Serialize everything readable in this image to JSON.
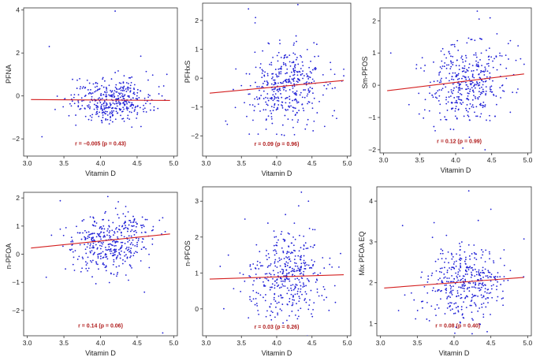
{
  "colors": {
    "points": "#1f1fd6",
    "fit_line": "#d42020",
    "annotation": "#b01c1c",
    "frame": "#333333"
  },
  "chart_data": [
    {
      "type": "scatter",
      "xlabel": "Vitamin D",
      "ylabel": "PFNA",
      "xlim": [
        2.95,
        5.05
      ],
      "ylim": [
        -2.8,
        4.1
      ],
      "xticks": [
        "3.0",
        "3.5",
        "4.0",
        "4.5",
        "5.0"
      ],
      "xtick_values": [
        3.0,
        3.5,
        4.0,
        4.5,
        5.0
      ],
      "yticks": [
        "−2",
        "0",
        "2",
        "4"
      ],
      "ytick_values": [
        -2,
        0,
        2,
        4
      ],
      "fit_line": {
        "x": [
          3.05,
          4.95
        ],
        "y": [
          -0.17,
          -0.21
        ]
      },
      "annotation": "r = −0.005 (p = 0.43)",
      "annotation_pos": [
        4.0,
        -2.3
      ],
      "points_summary": {
        "count": 400,
        "x_mean": 4.15,
        "x_sd": 0.28,
        "y_mean": -0.2,
        "y_sd": 0.5,
        "r": -0.005,
        "outliers": [
          [
            4.2,
            3.95
          ],
          [
            3.3,
            2.3
          ],
          [
            4.55,
            1.85
          ],
          [
            3.2,
            -1.9
          ]
        ]
      }
    },
    {
      "type": "scatter",
      "xlabel": "Vitamin D",
      "ylabel": "PFHxS",
      "xlim": [
        2.95,
        5.05
      ],
      "ylim": [
        -2.7,
        2.6
      ],
      "xticks": [
        "3.0",
        "3.5",
        "4.0",
        "4.5",
        "5.0"
      ],
      "xtick_values": [
        3.0,
        3.5,
        4.0,
        4.5,
        5.0
      ],
      "yticks": [
        "−2",
        "−1",
        "0",
        "1",
        "2"
      ],
      "ytick_values": [
        -2,
        -1,
        0,
        1,
        2
      ],
      "fit_line": {
        "x": [
          3.05,
          4.95
        ],
        "y": [
          -0.52,
          -0.08
        ]
      },
      "annotation": "r = 0.09 (p = 0.96)",
      "annotation_pos": [
        4.0,
        -2.35
      ],
      "points_summary": {
        "count": 400,
        "x_mean": 4.15,
        "x_sd": 0.28,
        "y_mean": -0.3,
        "y_sd": 0.7,
        "r": 0.09,
        "outliers": [
          [
            3.6,
            2.4
          ],
          [
            3.7,
            2.1
          ],
          [
            4.3,
            2.55
          ],
          [
            3.3,
            -1.6
          ]
        ]
      }
    },
    {
      "type": "scatter",
      "xlabel": "Vitamin D",
      "ylabel": "Sm-PFOS",
      "xlim": [
        2.95,
        5.05
      ],
      "ylim": [
        -2.1,
        2.4
      ],
      "xticks": [
        "3.0",
        "3.5",
        "4.0",
        "4.5",
        "5.0"
      ],
      "xtick_values": [
        3.0,
        3.5,
        4.0,
        4.5,
        5.0
      ],
      "yticks": [
        "−2",
        "−1",
        "0",
        "1",
        "2"
      ],
      "ytick_values": [
        -2,
        -1,
        0,
        1,
        2
      ],
      "fit_line": {
        "x": [
          3.05,
          4.95
        ],
        "y": [
          -0.17,
          0.35
        ]
      },
      "annotation": "r = 0.12 (p = 0.99)",
      "annotation_pos": [
        4.05,
        -1.8
      ],
      "points_summary": {
        "count": 400,
        "x_mean": 4.15,
        "x_sd": 0.28,
        "y_mean": 0.1,
        "y_sd": 0.65,
        "r": 0.12,
        "outliers": [
          [
            4.3,
            2.3
          ],
          [
            4.1,
            -1.95
          ],
          [
            3.1,
            1.0
          ],
          [
            4.95,
            0.65
          ]
        ]
      }
    },
    {
      "type": "scatter",
      "xlabel": "Vitamin D",
      "ylabel": "n-PFOA",
      "xlim": [
        2.95,
        5.05
      ],
      "ylim": [
        -2.9,
        2.2
      ],
      "xticks": [
        "3.0",
        "3.5",
        "4.0",
        "4.5",
        "5.0"
      ],
      "xtick_values": [
        3.0,
        3.5,
        4.0,
        4.5,
        5.0
      ],
      "yticks": [
        "−2",
        "−1",
        "0",
        "1",
        "2"
      ],
      "ytick_values": [
        -2,
        -1,
        0,
        1,
        2
      ],
      "fit_line": {
        "x": [
          3.05,
          4.95
        ],
        "y": [
          0.22,
          0.72
        ]
      },
      "annotation": "r = 0.14 (p = 0.06)",
      "annotation_pos": [
        4.0,
        -2.6
      ],
      "points_summary": {
        "count": 400,
        "x_mean": 4.15,
        "x_sd": 0.28,
        "y_mean": 0.45,
        "y_sd": 0.55,
        "r": 0.14,
        "outliers": [
          [
            4.1,
            2.05
          ],
          [
            3.45,
            1.9
          ],
          [
            4.85,
            -2.8
          ],
          [
            4.6,
            -1.35
          ]
        ]
      }
    },
    {
      "type": "scatter",
      "xlabel": "Vitamin D",
      "ylabel": "n-PFOS",
      "xlim": [
        2.95,
        5.05
      ],
      "ylim": [
        -0.75,
        3.4
      ],
      "xticks": [
        "3.0",
        "3.5",
        "4.0",
        "4.5",
        "5.0"
      ],
      "xtick_values": [
        3.0,
        3.5,
        4.0,
        4.5,
        5.0
      ],
      "yticks": [
        "0",
        "1",
        "2",
        "3"
      ],
      "ytick_values": [
        0,
        1,
        2,
        3
      ],
      "fit_line": {
        "x": [
          3.05,
          4.95
        ],
        "y": [
          0.83,
          0.95
        ]
      },
      "annotation": "r = 0.03 (p = 0.26)",
      "annotation_pos": [
        4.0,
        -0.55
      ],
      "points_summary": {
        "count": 400,
        "x_mean": 4.15,
        "x_sd": 0.28,
        "y_mean": 0.9,
        "y_sd": 0.6,
        "r": 0.03,
        "outliers": [
          [
            4.35,
            3.25
          ],
          [
            3.55,
            2.5
          ],
          [
            4.45,
            3.0
          ],
          [
            3.6,
            -0.25
          ]
        ]
      }
    },
    {
      "type": "scatter",
      "xlabel": "Vitamin D",
      "ylabel": "Mix PFOA EQ",
      "xlim": [
        2.95,
        5.05
      ],
      "ylim": [
        0.7,
        4.35
      ],
      "xticks": [
        "3.0",
        "3.5",
        "4.0",
        "4.5",
        "5.0"
      ],
      "xtick_values": [
        3.0,
        3.5,
        4.0,
        4.5,
        5.0
      ],
      "yticks": [
        "1",
        "2",
        "3",
        "4"
      ],
      "ytick_values": [
        1,
        2,
        3,
        4
      ],
      "fit_line": {
        "x": [
          3.05,
          4.95
        ],
        "y": [
          1.87,
          2.13
        ]
      },
      "annotation": "r = 0.08 (p = 0.40)",
      "annotation_pos": [
        4.05,
        0.9
      ],
      "points_summary": {
        "count": 400,
        "x_mean": 4.15,
        "x_sd": 0.28,
        "y_mean": 2.0,
        "y_sd": 0.45,
        "r": 0.08,
        "outliers": [
          [
            4.2,
            4.25
          ],
          [
            4.5,
            3.8
          ],
          [
            3.3,
            3.4
          ],
          [
            4.45,
            0.8
          ]
        ]
      }
    }
  ]
}
